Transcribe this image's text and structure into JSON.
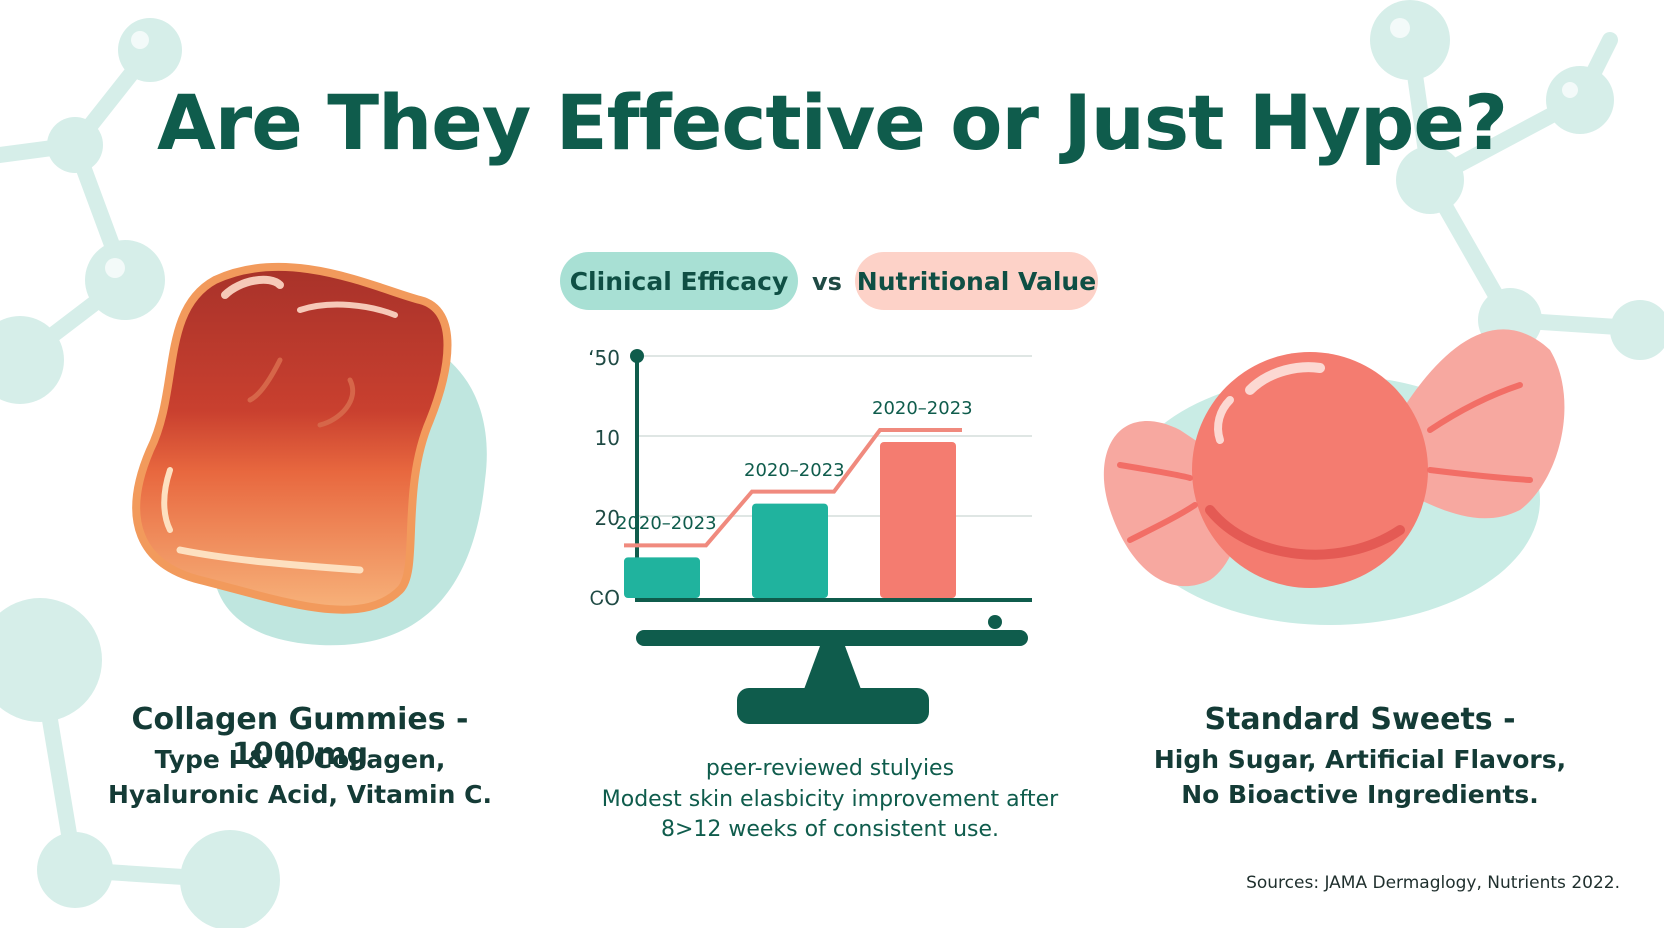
{
  "title": "Are They Effective or Just Hype?",
  "legend": {
    "left_pill": "Clinical Efficacy",
    "vs": "vs",
    "right_pill": "Nutritional Value",
    "left_color": "#a8e0d4",
    "right_color": "#fdd2c8"
  },
  "chart_data": {
    "type": "bar",
    "y_tick_labels": [
      "ʻ50",
      "10",
      "20",
      "ᏟО"
    ],
    "bars": [
      {
        "label": "2020–2023",
        "value": 0.27,
        "color": "#20b39e"
      },
      {
        "label": "2020–2023",
        "value": 0.61,
        "color": "#20b39e"
      },
      {
        "label": "2020–2023",
        "value": 1.0,
        "color": "#f47c70"
      }
    ],
    "trend_line_color": "#f08a7e",
    "axis_color": "#0f5c4c"
  },
  "left_product": {
    "line1": "Collagen Gummies - 1000mg",
    "line2": "Type I & III Collagen,",
    "line3": "Hyaluronic Acid, Vitamin C."
  },
  "study": {
    "line1": "peer-reviewed stulyies",
    "line2": "Modest skin elasbicity improvement after",
    "line3": "8>12 weeks of consistent use."
  },
  "right_product": {
    "line1": "Standard Sweets -",
    "line2": "High Sugar, Artificial Flavors,",
    "line3": "No Bioactive Ingredients."
  },
  "sources": "Sources: JAMA Dermaglogy, Nutrients 2022.",
  "colors": {
    "title": "#0f5c4c",
    "molecule": "#d4ede8",
    "gummy": "#e0623d",
    "candy": "#f47c70"
  }
}
